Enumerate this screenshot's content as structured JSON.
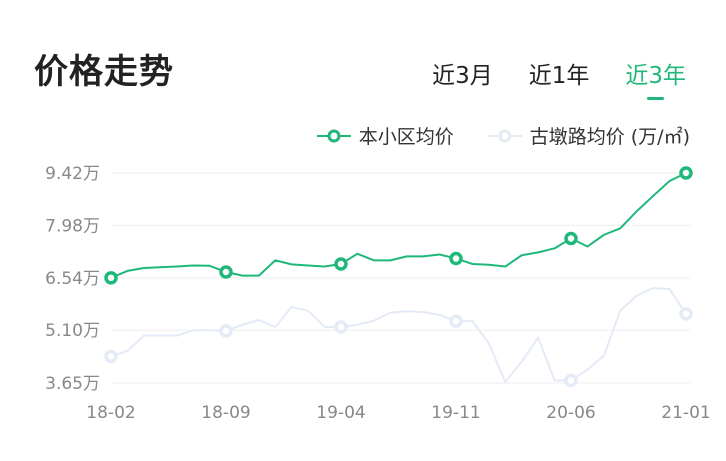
{
  "header": {
    "title": "价格走势"
  },
  "tabs": [
    {
      "label": "近3月",
      "active": false
    },
    {
      "label": "近1年",
      "active": false
    },
    {
      "label": "近3年",
      "active": true
    }
  ],
  "chart_data": {
    "type": "line",
    "title": "",
    "unit": "万/㎡",
    "ylim": [
      3.65,
      9.42
    ],
    "y_ticks": [
      9.42,
      7.98,
      6.54,
      5.1,
      3.65
    ],
    "y_tick_labels": [
      "9.42万",
      "7.98万",
      "6.54万",
      "5.10万",
      "3.65万"
    ],
    "x_tick_labels": [
      "18-02",
      "18-09",
      "19-04",
      "19-11",
      "20-06",
      "21-01"
    ],
    "x_start": "2018-02",
    "x_end": "2021-01",
    "grid": true,
    "legend_position": "top-right",
    "series": [
      {
        "name": "本小区均价",
        "color": "#1fb87a",
        "values": [
          6.54,
          6.73,
          6.81,
          6.83,
          6.85,
          6.88,
          6.87,
          6.7,
          6.6,
          6.6,
          7.02,
          6.91,
          6.88,
          6.85,
          6.92,
          7.2,
          7.02,
          7.02,
          7.13,
          7.13,
          7.18,
          7.07,
          6.92,
          6.9,
          6.85,
          7.16,
          7.24,
          7.35,
          7.62,
          7.4,
          7.72,
          7.9,
          8.37,
          8.79,
          9.2,
          9.42
        ]
      },
      {
        "name": "古墩路均价 (万/㎡)",
        "color": "#e4eaf6",
        "values": [
          4.38,
          4.53,
          4.95,
          4.95,
          4.95,
          5.1,
          5.1,
          5.08,
          5.25,
          5.38,
          5.19,
          5.74,
          5.63,
          5.19,
          5.19,
          5.25,
          5.36,
          5.58,
          5.62,
          5.6,
          5.52,
          5.35,
          5.35,
          4.74,
          3.68,
          4.24,
          4.9,
          3.72,
          3.72,
          4.02,
          4.4,
          5.64,
          6.05,
          6.26,
          6.23,
          5.55
        ]
      }
    ]
  }
}
